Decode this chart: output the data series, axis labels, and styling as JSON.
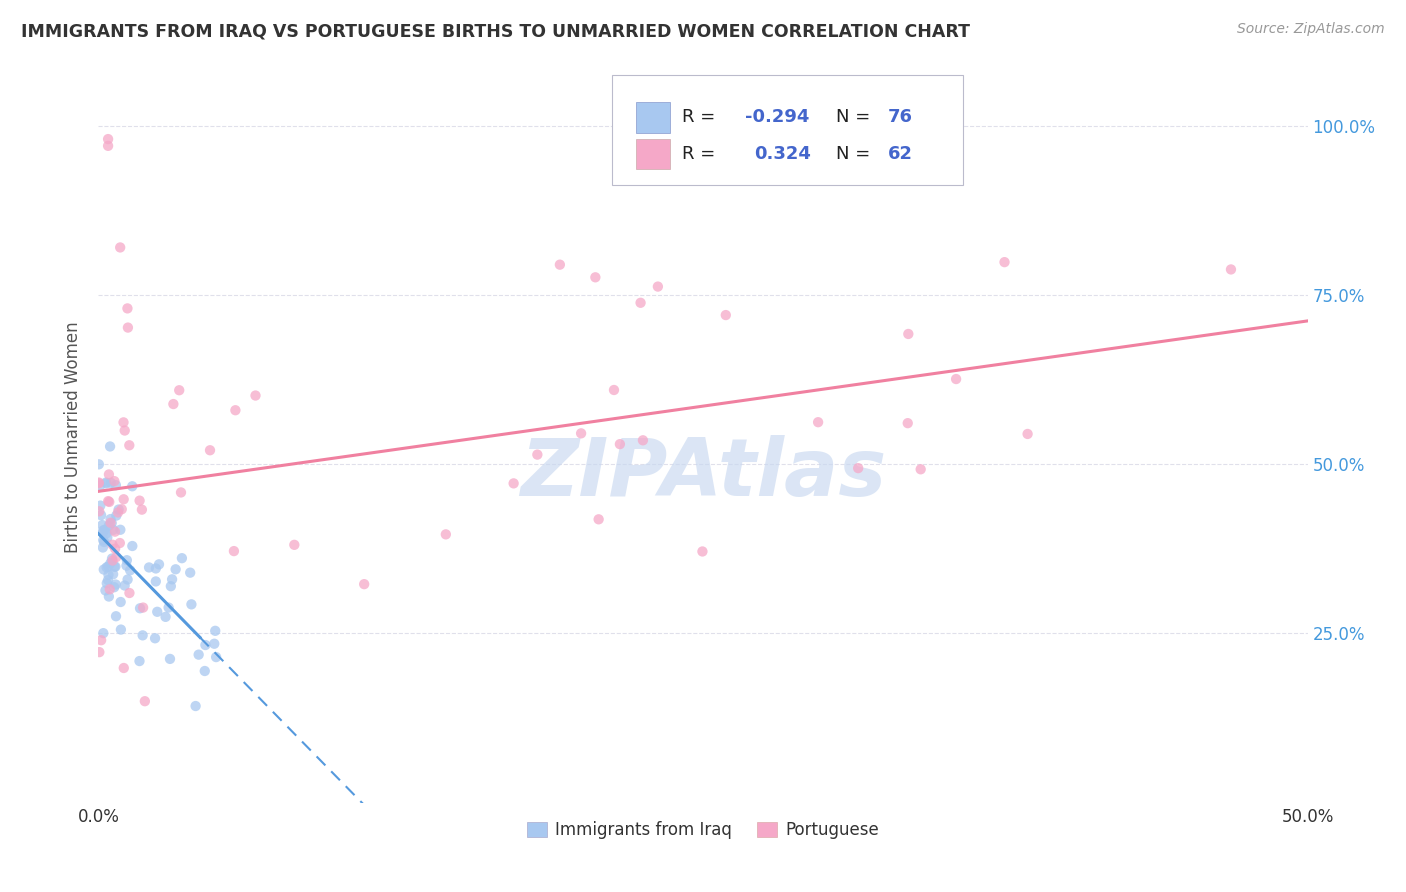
{
  "title": "IMMIGRANTS FROM IRAQ VS PORTUGUESE BIRTHS TO UNMARRIED WOMEN CORRELATION CHART",
  "source": "Source: ZipAtlas.com",
  "ylabel": "Births to Unmarried Women",
  "ytick_labels": [
    "25.0%",
    "50.0%",
    "75.0%",
    "100.0%"
  ],
  "ytick_values": [
    0.25,
    0.5,
    0.75,
    1.0
  ],
  "xlim": [
    0.0,
    0.5
  ],
  "ylim": [
    0.0,
    1.08
  ],
  "legend_label1": "Immigrants from Iraq",
  "legend_label2": "Portuguese",
  "color_iraq": "#a8c8f0",
  "color_portuguese": "#f5a8c8",
  "color_iraq_line": "#5599dd",
  "color_portuguese_line": "#f080a0",
  "color_watermark": "#c8d8f0",
  "background_color": "#ffffff",
  "grid_color": "#e0e0eb",
  "legend_text_color": "#4466cc",
  "title_color": "#333333",
  "source_color": "#999999",
  "ylabel_color": "#555555",
  "right_tick_color": "#4499dd",
  "bottom_tick_color": "#333333"
}
